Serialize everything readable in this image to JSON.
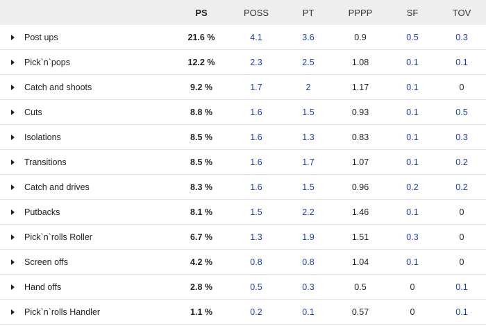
{
  "header": {
    "ps": "PS",
    "poss": "POSS",
    "pt": "PT",
    "pppp": "PPPP",
    "sf": "SF",
    "tov": "TOV"
  },
  "colors": {
    "blue_value": "#1a3fb0",
    "header_bg": "#eeeeee",
    "row_border": "#e3e3e3"
  },
  "rows": [
    {
      "name": "Post ups",
      "ps": "21.6 %",
      "poss": "4.1",
      "pt": "3.6",
      "pppp": "0.9",
      "sf": "0.5",
      "tov": "0.3"
    },
    {
      "name": "Pick`n`pops",
      "ps": "12.2 %",
      "poss": "2.3",
      "pt": "2.5",
      "pppp": "1.08",
      "sf": "0.1",
      "tov": "0.1"
    },
    {
      "name": "Catch and shoots",
      "ps": "9.2 %",
      "poss": "1.7",
      "pt": "2",
      "pppp": "1.17",
      "sf": "0.1",
      "tov": "0"
    },
    {
      "name": "Cuts",
      "ps": "8.8 %",
      "poss": "1.6",
      "pt": "1.5",
      "pppp": "0.93",
      "sf": "0.1",
      "tov": "0.5"
    },
    {
      "name": "Isolations",
      "ps": "8.5 %",
      "poss": "1.6",
      "pt": "1.3",
      "pppp": "0.83",
      "sf": "0.1",
      "tov": "0.3"
    },
    {
      "name": "Transitions",
      "ps": "8.5 %",
      "poss": "1.6",
      "pt": "1.7",
      "pppp": "1.07",
      "sf": "0.1",
      "tov": "0.2"
    },
    {
      "name": "Catch and drives",
      "ps": "8.3 %",
      "poss": "1.6",
      "pt": "1.5",
      "pppp": "0.96",
      "sf": "0.2",
      "tov": "0.2"
    },
    {
      "name": "Putbacks",
      "ps": "8.1 %",
      "poss": "1.5",
      "pt": "2.2",
      "pppp": "1.46",
      "sf": "0.1",
      "tov": "0"
    },
    {
      "name": "Pick`n`rolls Roller",
      "ps": "6.7 %",
      "poss": "1.3",
      "pt": "1.9",
      "pppp": "1.51",
      "sf": "0.3",
      "tov": "0"
    },
    {
      "name": "Screen offs",
      "ps": "4.2 %",
      "poss": "0.8",
      "pt": "0.8",
      "pppp": "1.04",
      "sf": "0.1",
      "tov": "0"
    },
    {
      "name": "Hand offs",
      "ps": "2.8 %",
      "poss": "0.5",
      "pt": "0.3",
      "pppp": "0.5",
      "sf": "0",
      "tov": "0.1"
    },
    {
      "name": "Pick`n`rolls Handler",
      "ps": "1.1 %",
      "poss": "0.2",
      "pt": "0.1",
      "pppp": "0.57",
      "sf": "0",
      "tov": "0.1"
    }
  ]
}
